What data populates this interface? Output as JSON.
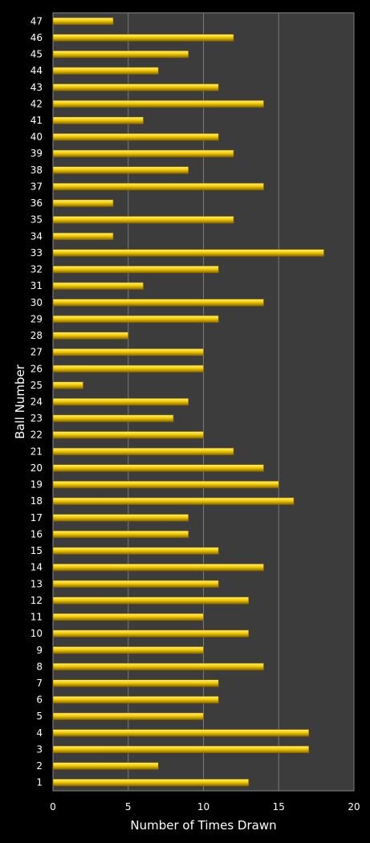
{
  "colors": {
    "background": "#000000",
    "plot_area": "#3c3c3c",
    "gridline": "#7a7a7a",
    "bar_fill": "#f5cc00",
    "bar_highlight": "#fff27a",
    "bar_edge": "#8a6a00",
    "text": "#ffffff"
  },
  "chart_data": {
    "type": "bar",
    "orientation": "horizontal",
    "title": "",
    "xlabel": "Number of Times Drawn",
    "ylabel": "Ball Number",
    "xlim": [
      0,
      20
    ],
    "xticks": [
      0,
      5,
      10,
      15,
      20
    ],
    "grid": true,
    "legend": "none",
    "categories": [
      "1",
      "2",
      "3",
      "4",
      "5",
      "6",
      "7",
      "8",
      "9",
      "10",
      "11",
      "12",
      "13",
      "14",
      "15",
      "16",
      "17",
      "18",
      "19",
      "20",
      "21",
      "22",
      "23",
      "24",
      "25",
      "26",
      "27",
      "28",
      "29",
      "30",
      "31",
      "32",
      "33",
      "34",
      "35",
      "36",
      "37",
      "38",
      "39",
      "40",
      "41",
      "42",
      "43",
      "44",
      "45",
      "46",
      "47"
    ],
    "values": [
      13,
      7,
      17,
      17,
      10,
      11,
      11,
      14,
      10,
      13,
      10,
      13,
      11,
      14,
      11,
      9,
      9,
      16,
      15,
      14,
      12,
      10,
      8,
      9,
      2,
      10,
      10,
      5,
      11,
      14,
      6,
      11,
      18,
      4,
      12,
      4,
      14,
      9,
      12,
      11,
      6,
      14,
      11,
      7,
      9,
      12,
      4
    ]
  }
}
